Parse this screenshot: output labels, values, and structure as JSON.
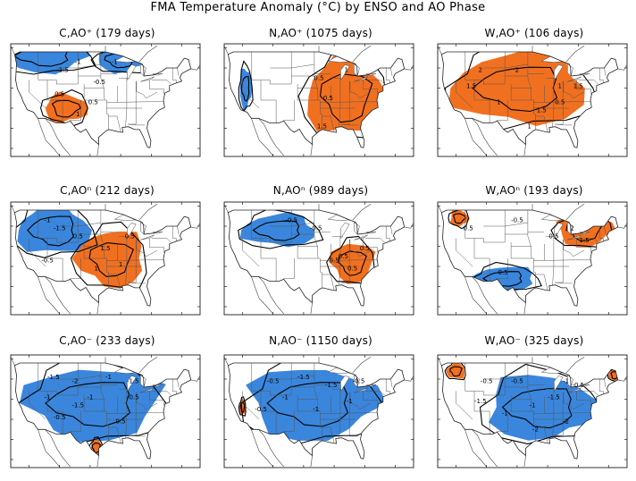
{
  "title": "FMA Temperature Anomaly (°C) by ENSO and AO Phase",
  "colors": {
    "warm": "#f07020",
    "cold": "#3a86dc",
    "contour": "#000000",
    "border": "#555555"
  },
  "panels": [
    {
      "id": "c-aop",
      "title": "C,AO⁺ (179 days)",
      "warm": [
        [
          -108,
          35,
          7,
          3.5
        ]
      ],
      "cold": [
        [
          -115,
          48,
          14,
          4
        ],
        [
          -90,
          47,
          8,
          3
        ]
      ],
      "labels": [
        [
          "-1.5",
          -109,
          44
        ],
        [
          "-1",
          -104,
          46
        ],
        [
          "-0.5",
          -97,
          41
        ],
        [
          "0.5",
          -110,
          38
        ],
        [
          "0.5",
          -99,
          36
        ],
        [
          "1",
          -104,
          33
        ],
        [
          "-1",
          -92,
          46
        ]
      ]
    },
    {
      "id": "n-aop",
      "title": "N,AO⁺ (1075 days)",
      "warm": [
        [
          -86,
          38,
          13,
          10
        ]
      ],
      "cold": [
        [
          -119,
          40,
          2,
          5
        ]
      ],
      "labels": [
        [
          "0.5",
          -95,
          42
        ],
        [
          "0.5",
          -92,
          37
        ],
        [
          "1.5",
          -94,
          30
        ],
        [
          "1",
          -86,
          44
        ]
      ]
    },
    {
      "id": "w-aop",
      "title": "W,AO⁺ (106 days)",
      "warm": [
        [
          -99,
          40,
          22,
          9
        ]
      ],
      "cold": [],
      "labels": [
        [
          "2",
          -112,
          44
        ],
        [
          "1.5",
          -115,
          40
        ],
        [
          "2",
          -100,
          44
        ],
        [
          "1",
          -106,
          36
        ],
        [
          "0.5",
          -86,
          36
        ],
        [
          "1.5",
          -92,
          34
        ],
        [
          "1",
          -86,
          40
        ],
        [
          "1",
          -96,
          30
        ],
        [
          "1.5",
          -80,
          40
        ]
      ]
    },
    {
      "id": "c-aon",
      "title": "C,AOⁿ (212 days)",
      "warm": [
        [
          -93,
          37,
          11,
          7
        ]
      ],
      "cold": [
        [
          -112,
          44,
          12,
          6
        ]
      ],
      "labels": [
        [
          "-1",
          -114,
          46
        ],
        [
          "-1.5",
          -110,
          44
        ],
        [
          "-0.5",
          -114,
          36
        ],
        [
          "1.5",
          -95,
          39
        ],
        [
          "1",
          -90,
          35
        ],
        [
          "1",
          -98,
          34
        ],
        [
          "0.5",
          -104,
          42
        ],
        [
          "0.5",
          -87,
          42
        ]
      ]
    },
    {
      "id": "n-aon",
      "title": "N,AOⁿ (989 days)",
      "warm": [
        [
          -84,
          36,
          7,
          5
        ]
      ],
      "cold": [
        [
          -108,
          44,
          12,
          4
        ]
      ],
      "labels": [
        [
          "-0.5",
          -104,
          46
        ],
        [
          "-0.5",
          -96,
          44
        ],
        [
          "0.5",
          -87,
          37
        ],
        [
          "0.5",
          -84,
          34
        ],
        [
          "0.5",
          -90,
          36
        ],
        [
          "0.5",
          -80,
          39
        ]
      ]
    },
    {
      "id": "w-aon",
      "title": "W,AOⁿ (193 days)",
      "warm": [
        [
          -78,
          44,
          9,
          4
        ],
        [
          -119,
          47,
          3,
          2
        ]
      ],
      "cold": [
        [
          -104,
          32,
          10,
          3
        ]
      ],
      "labels": [
        [
          "0.5",
          -116,
          44
        ],
        [
          "-0.5",
          -100,
          46
        ],
        [
          "-0.5",
          -105,
          33
        ],
        [
          "2",
          -82,
          44
        ],
        [
          "1.5",
          -78,
          41
        ],
        [
          "0.5",
          -88,
          42
        ]
      ]
    },
    {
      "id": "c-aom",
      "title": "C,AO⁻ (233 days)",
      "warm": [
        [
          -98,
          28,
          2,
          2
        ]
      ],
      "cold": [
        [
          -99,
          39,
          22,
          9
        ]
      ],
      "labels": [
        [
          "-1.5",
          -112,
          45
        ],
        [
          "-2",
          -105,
          44
        ],
        [
          "-1",
          -114,
          40
        ],
        [
          "-0.5",
          -110,
          35
        ],
        [
          "-1",
          -100,
          40
        ],
        [
          "-1.5",
          -104,
          38
        ],
        [
          "-0.5",
          -86,
          40
        ],
        [
          "0.5",
          -90,
          34
        ],
        [
          "-1",
          -94,
          45
        ],
        [
          "-1.5",
          -86,
          44
        ]
      ]
    },
    {
      "id": "n-aom",
      "title": "N,AO⁻ (1150 days)",
      "warm": [
        [
          -120,
          38,
          1,
          2
        ]
      ],
      "cold": [
        [
          -97,
          39,
          21,
          9
        ]
      ],
      "labels": [
        [
          "-0.5",
          -110,
          44
        ],
        [
          "-1.5",
          -100,
          45
        ],
        [
          "-1",
          -106,
          40
        ],
        [
          "-1",
          -96,
          37
        ],
        [
          "-1",
          -85,
          39
        ],
        [
          "-1.5",
          -91,
          43
        ],
        [
          "-0.5",
          -114,
          37
        ],
        [
          "-0.5",
          -82,
          44
        ]
      ]
    },
    {
      "id": "w-aom",
      "title": "W,AO⁻ (325 days)",
      "warm": [
        [
          -120,
          47,
          3,
          2
        ],
        [
          -68,
          46,
          2,
          1.5
        ]
      ],
      "cold": [
        [
          -92,
          38,
          18,
          8
        ]
      ],
      "labels": [
        [
          "-0.5",
          -110,
          44
        ],
        [
          "-0.5",
          -100,
          44
        ],
        [
          "-1.5",
          -112,
          39
        ],
        [
          "-1",
          -104,
          36
        ],
        [
          "-1",
          -95,
          38
        ],
        [
          "-1.5",
          -88,
          40
        ],
        [
          "-2",
          -84,
          34
        ],
        [
          "-2",
          -94,
          32
        ],
        [
          "-0.5",
          -80,
          43
        ],
        [
          "-1",
          -84,
          44
        ]
      ]
    }
  ]
}
